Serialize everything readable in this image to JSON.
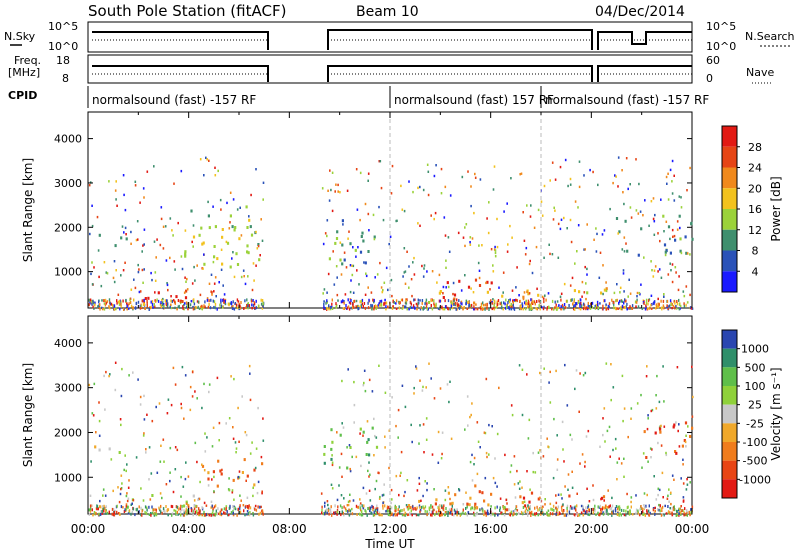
{
  "header": {
    "station": "South Pole Station (fitACF)",
    "beam": "Beam 10",
    "date": "04/Dec/2014"
  },
  "params": {
    "nsky_label": "N.Sky",
    "nsky_ticks": [
      "10^5",
      "10^0"
    ],
    "nsearch_label": "N.Search",
    "nsearch_ticks": [
      "10^5",
      "10^0"
    ],
    "freq_label_1": "Freq.",
    "freq_label_2": "[MHz]",
    "freq_ticks": [
      "18",
      "8"
    ],
    "nave_label": "Nave",
    "nave_ticks": [
      "60",
      "0"
    ],
    "cpid_label": "CPID",
    "cpid_segments": [
      {
        "label": "normalsound (fast) -157 RF",
        "start_h": 0
      },
      {
        "label": "normalsound (fast) 157 RF",
        "start_h": 12
      },
      {
        "label": "normalsound (fast) -157 RF",
        "start_h": 18
      }
    ]
  },
  "chart_data": [
    {
      "type": "heatmap",
      "panel": "power",
      "ylabel": "Slant Range [km]",
      "xlabel": "Time UT",
      "xlim": [
        0,
        24
      ],
      "ylim": [
        180,
        4600
      ],
      "xticks": [
        "00:00",
        "04:00",
        "08:00",
        "12:00",
        "16:00",
        "20:00",
        "00:00"
      ],
      "yticks": [
        1000,
        2000,
        3000,
        4000
      ],
      "colorbar": {
        "label": "Power [dB]",
        "levels": [
          4,
          8,
          12,
          16,
          20,
          24,
          28
        ],
        "colors": [
          "#1a1aff",
          "#2a52b8",
          "#3f8f6e",
          "#9bd23a",
          "#f2c21e",
          "#f0891c",
          "#e64515",
          "#e21a14"
        ]
      },
      "data_gaps_h": [
        [
          6.95,
          9.25
        ],
        [
          21.62,
          21.72
        ]
      ],
      "regions": [
        {
          "t": [
            0.2,
            1.5
          ],
          "r": [
            1500,
            1900
          ],
          "level": 2
        },
        {
          "t": [
            1.5,
            4.2
          ],
          "r": [
            300,
            650
          ],
          "level": 7
        },
        {
          "t": [
            2.5,
            3.5
          ],
          "r": [
            400,
            550
          ],
          "level": 6
        },
        {
          "t": [
            3.8,
            6.9
          ],
          "r": [
            1000,
            2500
          ],
          "level": 3
        },
        {
          "t": [
            9.3,
            11.5
          ],
          "r": [
            1200,
            2200
          ],
          "level": 2
        },
        {
          "t": [
            12.5,
            17.5
          ],
          "r": [
            300,
            600
          ],
          "level": 4
        },
        {
          "t": [
            14.0,
            16.2
          ],
          "r": [
            300,
            900
          ],
          "level": 7
        },
        {
          "t": [
            17.0,
            20.6
          ],
          "r": [
            450,
            700
          ],
          "level": 4
        },
        {
          "t": [
            20.8,
            24.0
          ],
          "r": [
            1400,
            2300
          ],
          "level": 2
        }
      ]
    },
    {
      "type": "heatmap",
      "panel": "velocity",
      "ylabel": "Slant Range [km]",
      "xlabel": "Time UT",
      "xlim": [
        0,
        24
      ],
      "ylim": [
        180,
        4600
      ],
      "xticks": [
        "00:00",
        "04:00",
        "08:00",
        "12:00",
        "16:00",
        "20:00",
        "00:00"
      ],
      "yticks": [
        1000,
        2000,
        3000,
        4000
      ],
      "colorbar": {
        "label": "Velocity [m s⁻¹]",
        "levels": [
          "1000",
          "500",
          "100",
          "25",
          "-25",
          "-100",
          "-500",
          "-1000"
        ],
        "colors": [
          "#2a46b0",
          "#2f8f6a",
          "#5fbf4a",
          "#8fd13a",
          "#c8c8c8",
          "#f0a82a",
          "#f07c1c",
          "#e84515",
          "#e21a14"
        ]
      },
      "data_gaps_h": [
        [
          6.95,
          9.25
        ],
        [
          21.62,
          21.72
        ]
      ],
      "regions": [
        {
          "t": [
            0.2,
            1.5
          ],
          "r": [
            1500,
            1900
          ],
          "level": 4
        },
        {
          "t": [
            1.5,
            4.2
          ],
          "r": [
            300,
            650
          ],
          "level": 4
        },
        {
          "t": [
            4.5,
            6.9
          ],
          "r": [
            800,
            1600
          ],
          "level": 6
        },
        {
          "t": [
            9.3,
            11.5
          ],
          "r": [
            1200,
            2200
          ],
          "level": 2
        },
        {
          "t": [
            12.5,
            17.5
          ],
          "r": [
            300,
            600
          ],
          "level": 6
        },
        {
          "t": [
            14.0,
            16.2
          ],
          "r": [
            300,
            900
          ],
          "level": 6
        },
        {
          "t": [
            17.0,
            20.6
          ],
          "r": [
            450,
            700
          ],
          "level": 7
        },
        {
          "t": [
            22.0,
            24.0
          ],
          "r": [
            1400,
            2300
          ],
          "level": 7
        }
      ]
    }
  ]
}
